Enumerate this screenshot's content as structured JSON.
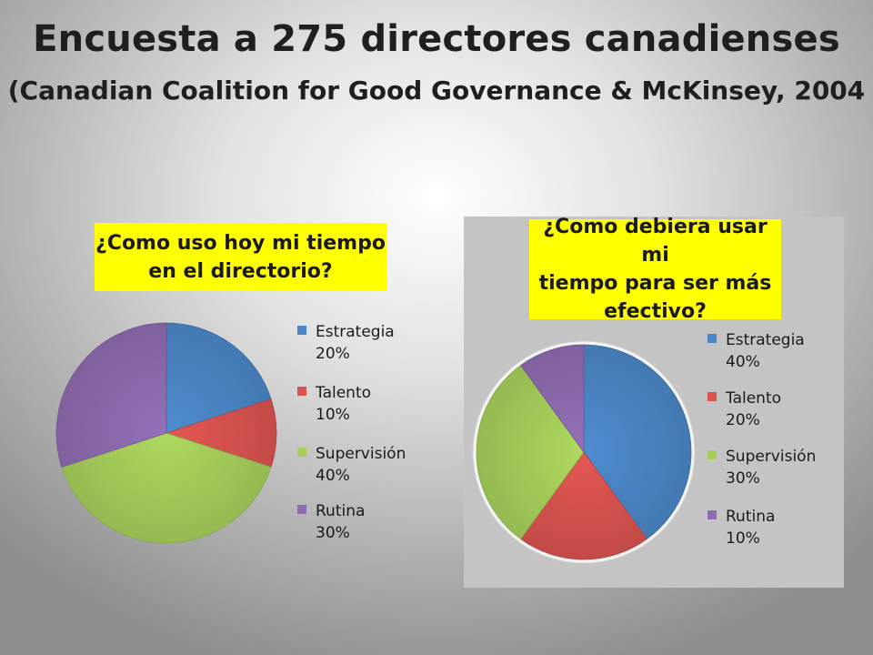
{
  "title": "Encuesta a 275 directores canadienses",
  "subtitle": "(Canadian Coalition for Good Governance & McKinsey, 2004",
  "chart_data": [
    {
      "type": "pie",
      "title": "¿Como uso hoy mi tiempo\nen el directorio?",
      "categories": [
        "Estrategia",
        "Talento",
        "Supervisión",
        "Rutina"
      ],
      "values": [
        20,
        10,
        40,
        30
      ],
      "unit": "%",
      "colors": [
        "#4a86c6",
        "#d9534f",
        "#a6cf5a",
        "#8e6bb0"
      ],
      "legend_labels": [
        "Estrategia\n20%",
        "Talento\n10%",
        "Supervisión\n40%",
        "Rutina 30%"
      ],
      "legend": "right"
    },
    {
      "type": "pie",
      "title": "¿Como debiera usar mi\ntiempo para ser más\nefectivo?",
      "categories": [
        "Estrategia",
        "Talento",
        "Supervisión",
        "Rutina"
      ],
      "values": [
        40,
        20,
        30,
        10
      ],
      "unit": "%",
      "colors": [
        "#4a86c6",
        "#d9534f",
        "#a6cf5a",
        "#8e6bb0"
      ],
      "legend_labels": [
        "Estrategia\n40%",
        "Talento 20%",
        "Supervisión\n30%",
        "Rutina 10%"
      ],
      "legend": "right"
    }
  ]
}
